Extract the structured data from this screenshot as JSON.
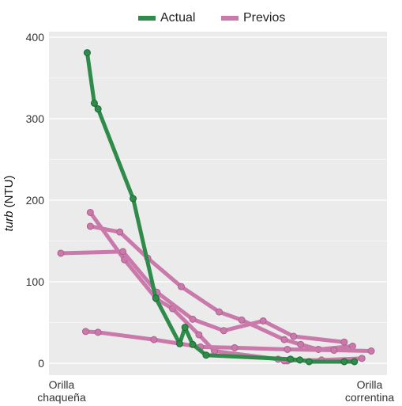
{
  "chart_data": {
    "type": "line",
    "ylabel_italic": "turb",
    "ylabel_rest": " (NTU)",
    "ylim": [
      0,
      400
    ],
    "yticks": [
      "0",
      "100",
      "200",
      "300",
      "400"
    ],
    "x_left_label_line1": "Orilla",
    "x_left_label_line2": "chaqueña",
    "x_right_label_line1": "Orilla",
    "x_right_label_line2": "correntina",
    "grid": true,
    "legend": "top-center",
    "colors": {
      "actual": "#2e8b4a",
      "previos": "#c97aab",
      "panel": "#ebebeb",
      "grid": "#ffffff"
    },
    "series": [
      {
        "name": "Actual",
        "group": "actual",
        "points": [
          [
            0.085,
            381
          ],
          [
            0.108,
            319
          ],
          [
            0.12,
            312
          ],
          [
            0.233,
            202
          ],
          [
            0.306,
            80
          ],
          [
            0.383,
            24
          ],
          [
            0.4,
            44
          ],
          [
            0.425,
            23
          ],
          [
            0.468,
            10
          ],
          [
            0.74,
            5
          ],
          [
            0.77,
            4
          ],
          [
            0.8,
            2
          ],
          [
            0.913,
            2
          ],
          [
            0.946,
            2
          ]
        ]
      },
      {
        "name": "Previos",
        "group": "previos",
        "points": [
          [
            0.095,
            185
          ],
          [
            0.205,
            127
          ],
          [
            0.308,
            79
          ],
          [
            0.36,
            67
          ],
          [
            0.445,
            35
          ],
          [
            0.495,
            15
          ],
          [
            0.7,
            5
          ],
          [
            0.73,
            3
          ]
        ]
      },
      {
        "name": "Previos",
        "group": "previos",
        "points": [
          [
            0.095,
            168
          ],
          [
            0.19,
            161
          ],
          [
            0.28,
            129
          ],
          [
            0.388,
            94
          ],
          [
            0.51,
            63
          ],
          [
            0.583,
            53
          ],
          [
            0.72,
            29
          ],
          [
            0.773,
            23
          ],
          [
            0.83,
            17
          ],
          [
            0.94,
            21
          ]
        ]
      },
      {
        "name": "Previos",
        "group": "previos",
        "points": [
          [
            0.0,
            135
          ],
          [
            0.2,
            137
          ],
          [
            0.31,
            87
          ],
          [
            0.425,
            54
          ],
          [
            0.525,
            40
          ],
          [
            0.652,
            52
          ],
          [
            0.75,
            33
          ],
          [
            0.913,
            26
          ]
        ]
      },
      {
        "name": "Previos",
        "group": "previos",
        "points": [
          [
            0.08,
            39
          ],
          [
            0.12,
            38
          ],
          [
            0.3,
            29
          ],
          [
            0.45,
            20
          ],
          [
            0.56,
            19
          ],
          [
            0.73,
            17
          ],
          [
            0.88,
            16
          ],
          [
            1.0,
            15
          ]
        ]
      },
      {
        "name": "Previos",
        "group": "previos",
        "points": [
          [
            0.72,
            3
          ],
          [
            0.84,
            4
          ],
          [
            0.97,
            6
          ]
        ]
      }
    ],
    "legend_entries": [
      {
        "label": "Actual",
        "color": "#2e8b4a"
      },
      {
        "label": "Previos",
        "color": "#c97aab"
      }
    ]
  }
}
